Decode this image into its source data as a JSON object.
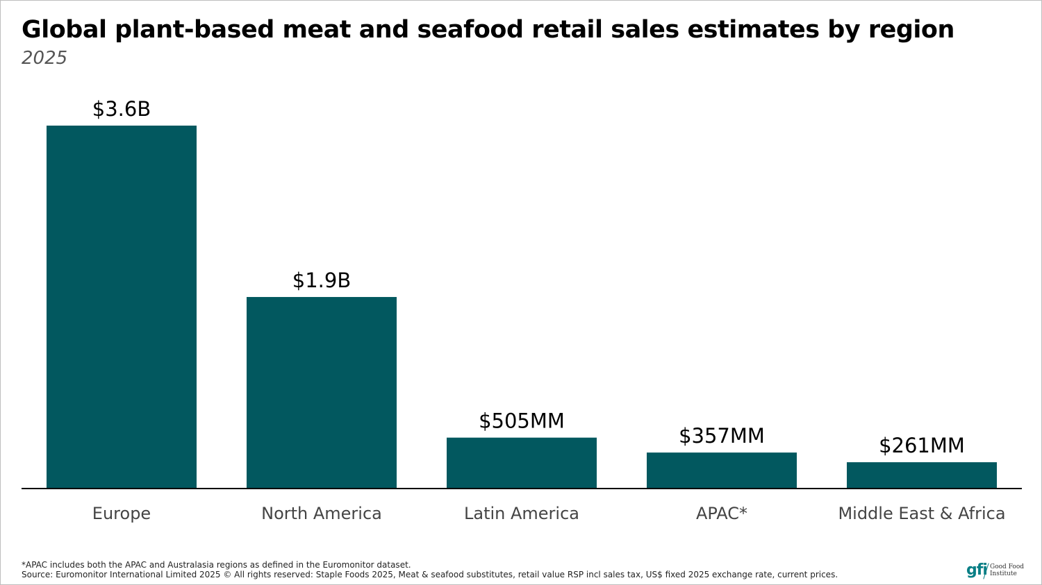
{
  "header": {
    "title": "Global plant-based meat and seafood retail sales estimates by region",
    "subtitle": "2025"
  },
  "chart_data": {
    "type": "bar",
    "categories": [
      "Europe",
      "North America",
      "Latin America",
      "APAC*",
      "Middle East & Africa"
    ],
    "values": [
      3600,
      1900,
      505,
      357,
      261
    ],
    "unit": "US$ millions",
    "data_labels": [
      "$3.6B",
      "$1.9B",
      "$505MM",
      "$357MM",
      "$261MM"
    ],
    "title": "Global plant-based meat and seafood retail sales estimates by region",
    "subtitle": "2025",
    "xlabel": "",
    "ylabel": "",
    "ylim": [
      0,
      3600
    ],
    "grid": false,
    "legend": "none",
    "bar_color": "#02585f"
  },
  "footer": {
    "note": "*APAC includes both the APAC and Australasia regions as defined in the Euromonitor dataset.",
    "source": "Source: Euromonitor International Limited 2025 © All rights reserved: Staple Foods 2025, Meat & seafood substitutes, retail value RSP incl sales tax, US$ fixed 2025 exchange rate, current prices."
  },
  "logo": {
    "mark": "gfi",
    "line1": "Good Food",
    "line2": "Institute"
  },
  "colors": {
    "bar": "#02585f",
    "axis": "#000000",
    "category_label": "#444444",
    "logo": "#0a7f86"
  }
}
